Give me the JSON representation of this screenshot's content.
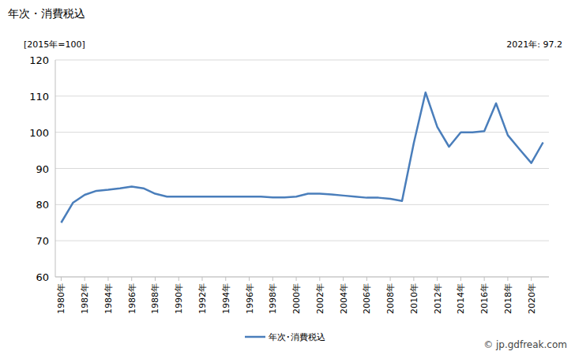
{
  "chart_data": {
    "type": "line",
    "title": "年次・消費税込",
    "y_label": "[2015年=100]",
    "annotations": [
      "2021年: 97.2",
      "© jp.gdfreak.com"
    ],
    "categories": [
      "1980年",
      null,
      "1982年",
      null,
      "1984年",
      null,
      "1986年",
      null,
      "1988年",
      null,
      "1990年",
      null,
      "1992年",
      null,
      "1994年",
      null,
      "1996年",
      null,
      "1998年",
      null,
      "2000年",
      null,
      "2002年",
      null,
      "2004年",
      null,
      "2006年",
      null,
      "2008年",
      null,
      "2010年",
      null,
      "2012年",
      null,
      "2014年",
      null,
      "2016年",
      null,
      "2018年",
      null,
      "2020年",
      null
    ],
    "series": [
      {
        "name": "年次･消費税込",
        "color": "#4a7ebb",
        "values": [
          75,
          80.5,
          82.7,
          83.8,
          84.1,
          84.5,
          85,
          84.5,
          83,
          82.2,
          82.2,
          82.2,
          82.2,
          82.2,
          82.2,
          82.2,
          82.2,
          82.2,
          82,
          82,
          82.2,
          83,
          83,
          82.8,
          82.5,
          82.2,
          81.9,
          81.9,
          81.6,
          81,
          97,
          111,
          101.5,
          96,
          100,
          100,
          100.3,
          108,
          99.2,
          95.3,
          91.5,
          97.2
        ]
      }
    ],
    "ylim": [
      60,
      120
    ],
    "yticks": [
      60,
      70,
      80,
      90,
      100,
      110,
      120
    ],
    "grid": true,
    "legend": "bottom"
  }
}
